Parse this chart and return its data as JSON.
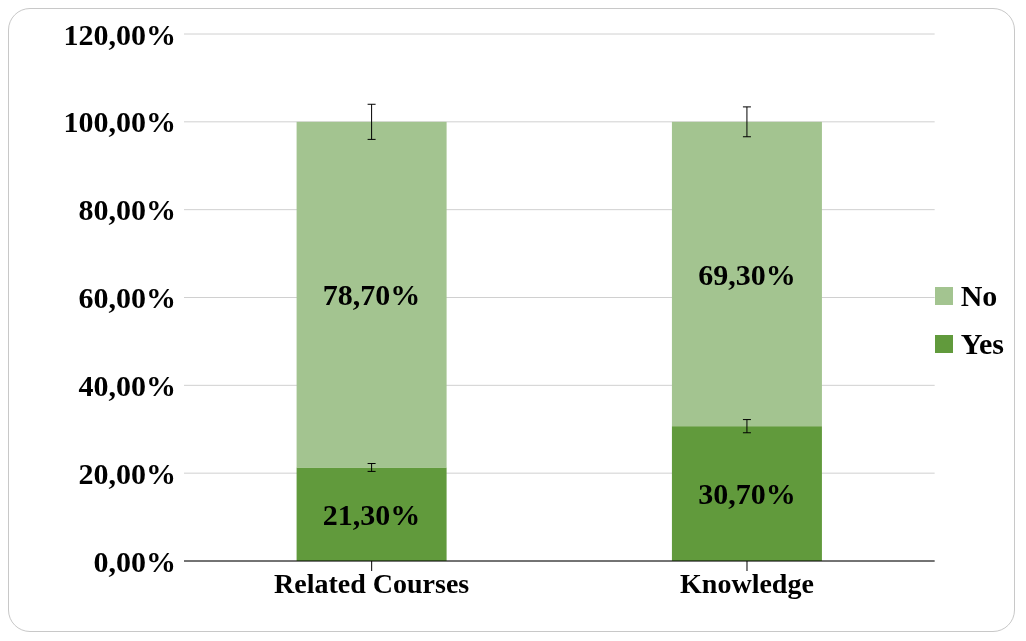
{
  "chart_data": {
    "type": "bar",
    "stacked": true,
    "categories": [
      "Related Courses",
      "Knowledge"
    ],
    "series": [
      {
        "name": "Yes",
        "color": "#619a3c",
        "values": [
          21.3,
          30.7
        ],
        "errors": [
          0.9,
          1.5
        ],
        "value_labels": [
          "21,30%",
          "30,70%"
        ]
      },
      {
        "name": "No",
        "color": "#a3c490",
        "values": [
          78.7,
          69.3
        ],
        "errors": [
          4,
          3.4
        ],
        "value_labels": [
          "78,70%",
          "69,30%"
        ]
      }
    ],
    "ylim": [
      0,
      120
    ],
    "yticks": [
      {
        "value": 0,
        "label": "0,00%"
      },
      {
        "value": 20,
        "label": "20,00%"
      },
      {
        "value": 40,
        "label": "40,00%"
      },
      {
        "value": 60,
        "label": "60,00%"
      },
      {
        "value": 80,
        "label": "80,00%"
      },
      {
        "value": 100,
        "label": "100,00%"
      },
      {
        "value": 120,
        "label": "120,00%"
      }
    ],
    "grid": "y",
    "legend": "right"
  }
}
